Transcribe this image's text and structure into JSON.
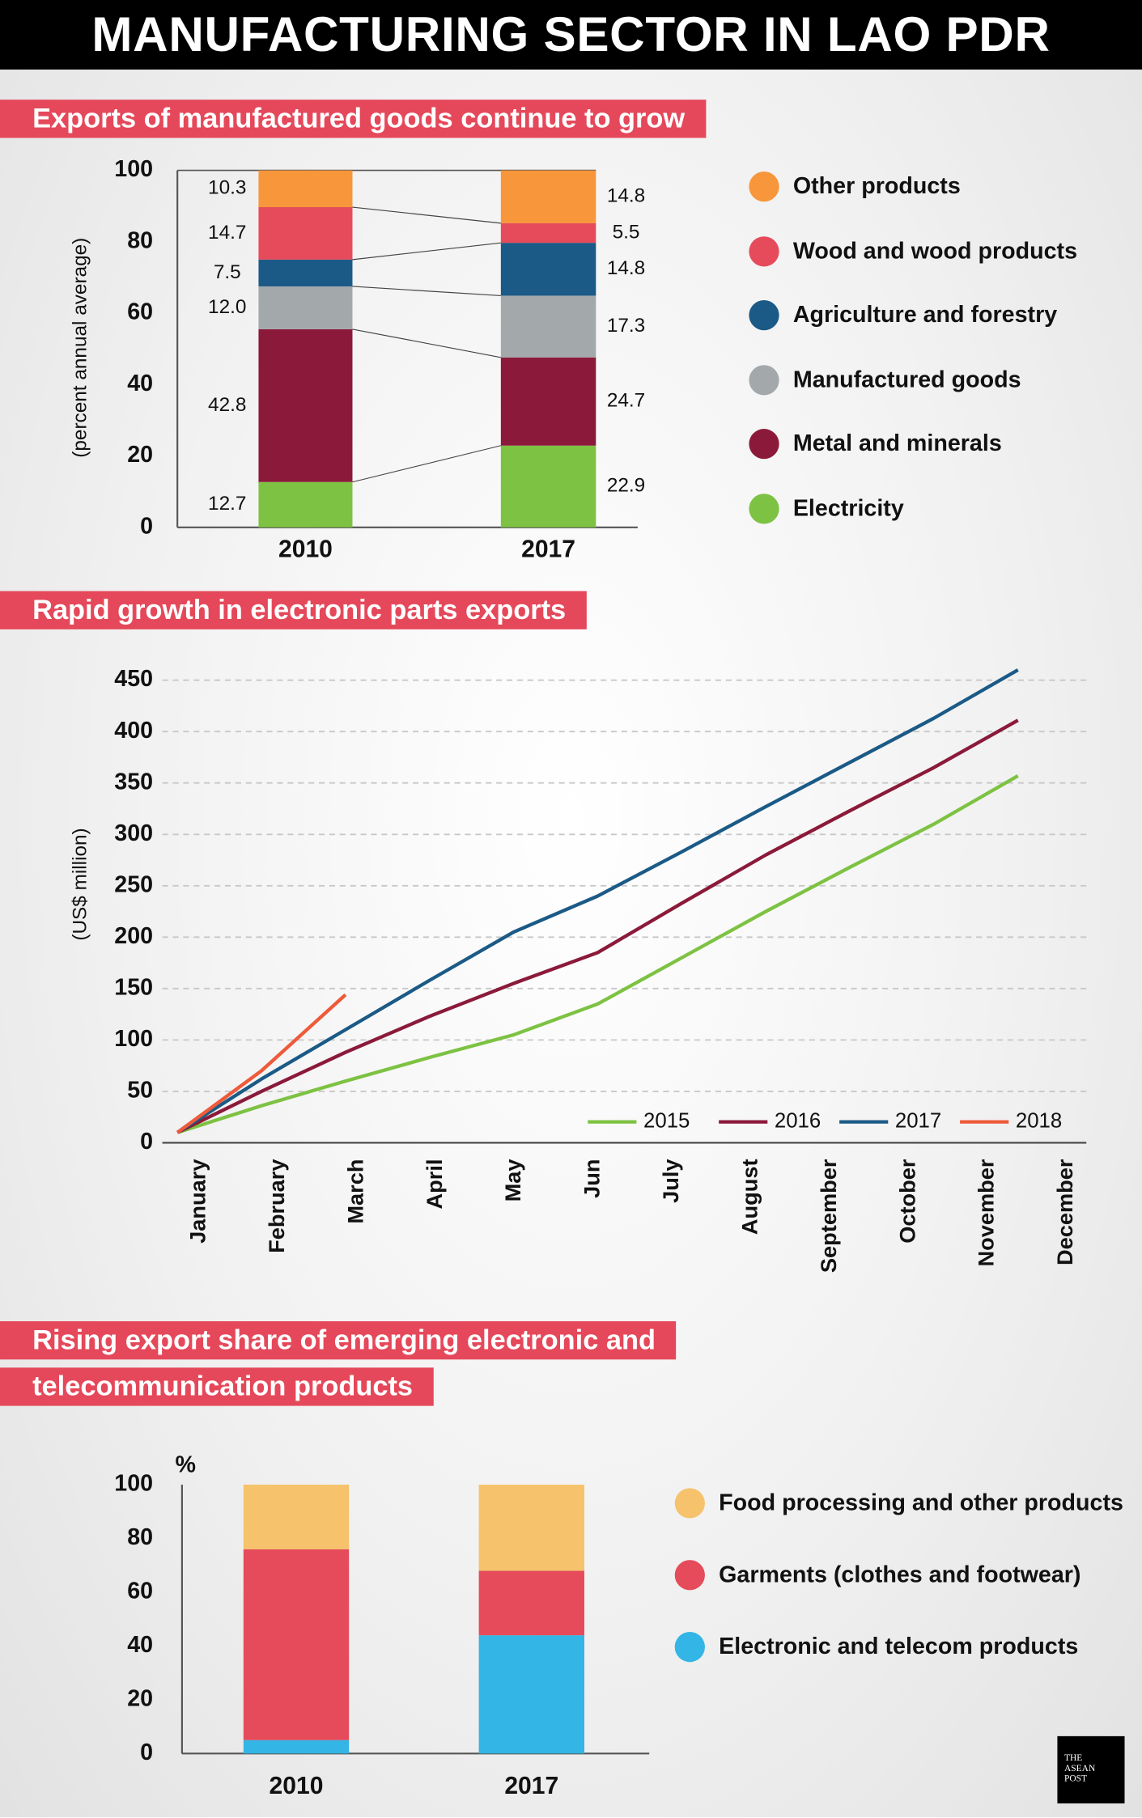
{
  "title": "MANUFACTURING SECTOR IN LAO PDR",
  "chart_data": [
    {
      "type": "stacked-bar",
      "title": "Exports of manufactured goods continue to grow",
      "ylabel": "(percent annual average)",
      "categories": [
        "2010",
        "2017"
      ],
      "ylim": [
        0,
        100
      ],
      "yticks": [
        0,
        20,
        40,
        60,
        80,
        100
      ],
      "connectors": true,
      "series": [
        {
          "name": "Electricity",
          "color": "#7dc242",
          "values": [
            12.7,
            22.9
          ],
          "value_labels": [
            "12.7",
            "22.9"
          ]
        },
        {
          "name": "Metal and minerals",
          "color": "#8b1a3a",
          "values": [
            42.8,
            24.7
          ],
          "value_labels": [
            "42.8",
            "24.7"
          ]
        },
        {
          "name": "Manufactured goods",
          "color": "#a3a8ab",
          "values": [
            12,
            17.3
          ],
          "value_labels": [
            "12.0",
            "17.3"
          ]
        },
        {
          "name": "Agriculture and forestry",
          "color": "#1b5a86",
          "values": [
            7.5,
            14.8
          ],
          "value_labels": [
            "7.5",
            "14.8"
          ]
        },
        {
          "name": "Wood and wood products",
          "color": "#e54b5b",
          "values": [
            14.7,
            5.5
          ],
          "value_labels": [
            "14.7",
            "5.5"
          ]
        },
        {
          "name": "Other products",
          "color": "#f7963a",
          "values": [
            10.3,
            14.8
          ],
          "value_labels": [
            "10.3",
            "14.8"
          ]
        }
      ]
    },
    {
      "type": "line",
      "title": "Rapid growth in electronic parts exports",
      "ylabel": "(US$ million)",
      "categories": [
        "January",
        "February",
        "March",
        "April",
        "May",
        "Jun",
        "July",
        "August",
        "September",
        "October",
        "November",
        "December"
      ],
      "ylim": [
        0,
        460
      ],
      "yticks": [
        0,
        50,
        100,
        150,
        200,
        250,
        300,
        350,
        400,
        450
      ],
      "grid": true,
      "legend": "lower right",
      "series": [
        {
          "name": "2015",
          "color": "#7dc242",
          "values": [
            10,
            36,
            60,
            83,
            105,
            135,
            180,
            225,
            268,
            310,
            357,
            null
          ]
        },
        {
          "name": "2016",
          "color": "#8b1a3a",
          "values": [
            10,
            50,
            88,
            123,
            155,
            185,
            233,
            280,
            323,
            365,
            411,
            null
          ]
        },
        {
          "name": "2017",
          "color": "#1b5a86",
          "values": [
            10,
            62,
            110,
            158,
            205,
            240,
            283,
            327,
            370,
            413,
            460,
            null
          ]
        },
        {
          "name": "2018",
          "color": "#ee5a3a",
          "values": [
            10,
            70,
            144,
            null,
            null,
            null,
            null,
            null,
            null,
            null,
            null,
            null
          ]
        }
      ]
    },
    {
      "type": "stacked-bar",
      "title": "Rising export share of emerging electronic and telecommunication products",
      "ylabel": "%",
      "categories": [
        "2010",
        "2017"
      ],
      "ylim": [
        0,
        100
      ],
      "yticks": [
        0,
        20,
        40,
        60,
        80,
        100
      ],
      "series": [
        {
          "name": "Electronic and telecom products",
          "color": "#33b5e5",
          "values": [
            5,
            44
          ]
        },
        {
          "name": "Garments (clothes and footwear)",
          "color": "#e54b5b",
          "values": [
            71,
            24
          ]
        },
        {
          "name": "Food processing and  other products",
          "color": "#f6c26b",
          "values": [
            24,
            32
          ]
        }
      ]
    }
  ],
  "logo": "THE ASEAN POST"
}
